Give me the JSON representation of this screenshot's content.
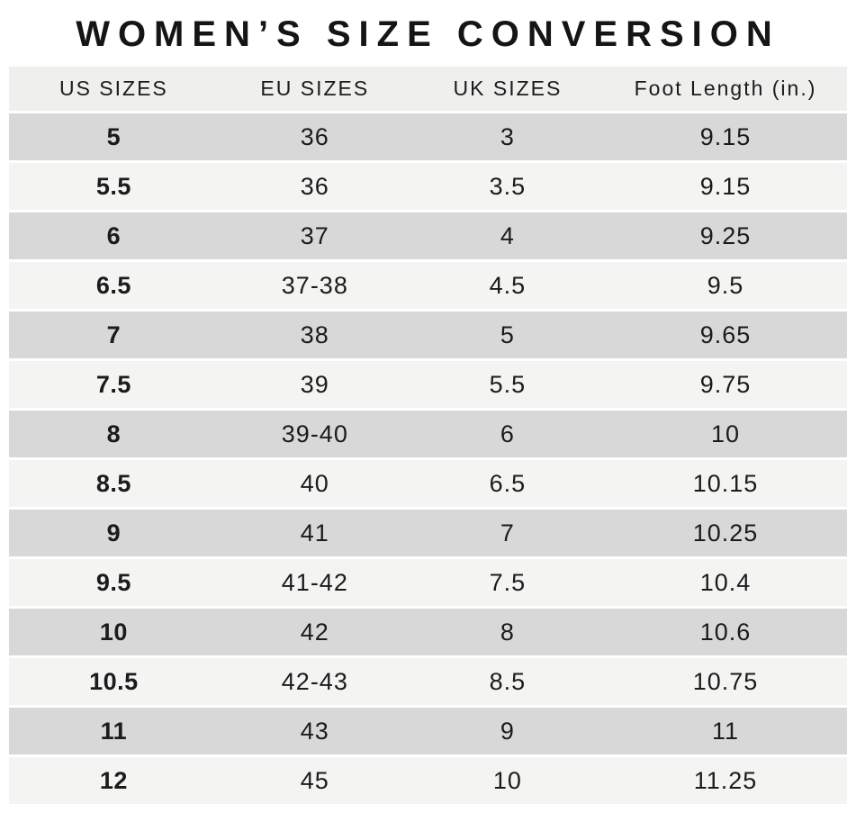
{
  "title": "WOMEN’S SIZE CONVERSION",
  "chart_data": {
    "type": "table",
    "title": "WOMEN’S SIZE CONVERSION",
    "columns": [
      "US SIZES",
      "EU SIZES",
      "UK SIZES",
      "Foot Length (in.)"
    ],
    "rows": [
      [
        "5",
        "36",
        "3",
        "9.15"
      ],
      [
        "5.5",
        "36",
        "3.5",
        "9.15"
      ],
      [
        "6",
        "37",
        "4",
        "9.25"
      ],
      [
        "6.5",
        "37-38",
        "4.5",
        "9.5"
      ],
      [
        "7",
        "38",
        "5",
        "9.65"
      ],
      [
        "7.5",
        "39",
        "5.5",
        "9.75"
      ],
      [
        "8",
        "39-40",
        "6",
        "10"
      ],
      [
        "8.5",
        "40",
        "6.5",
        "10.15"
      ],
      [
        "9",
        "41",
        "7",
        "10.25"
      ],
      [
        "9.5",
        "41-42",
        "7.5",
        "10.4"
      ],
      [
        "10",
        "42",
        "8",
        "10.6"
      ],
      [
        "10.5",
        "42-43",
        "8.5",
        "10.75"
      ],
      [
        "11",
        "43",
        "9",
        "11"
      ],
      [
        "12",
        "45",
        "10",
        "11.25"
      ]
    ],
    "layout": {
      "striped": true,
      "stripe_pattern": "odd-rows-dark",
      "first_column_bold": true
    }
  },
  "colors": {
    "header_bg": "#efefee",
    "row_dark": "#d8d8d8",
    "row_light": "#f4f4f3",
    "text": "#1b1b1b",
    "background": "#ffffff"
  }
}
